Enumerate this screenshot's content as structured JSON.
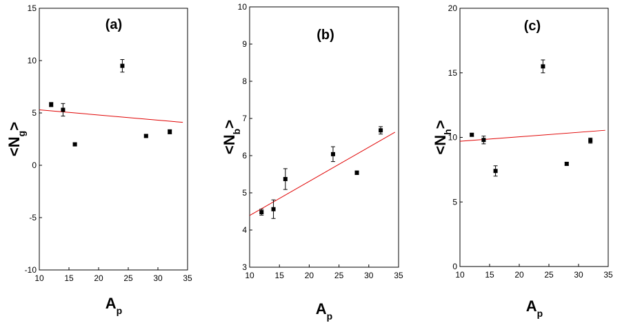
{
  "chart_data": [
    {
      "type": "scatter",
      "title": "(a)",
      "xlabel": "A",
      "xlabel_sub": "p",
      "ylabel": "<N",
      "ylabel_sub": "g",
      "ylabel_end": ">",
      "x": [
        12,
        14,
        16,
        24,
        28,
        32
      ],
      "values": [
        5.8,
        5.3,
        2.0,
        9.5,
        2.8,
        3.2
      ],
      "errors": [
        0.2,
        0.6,
        0.1,
        0.6,
        0.1,
        0.2
      ],
      "color": "#000000",
      "fit": {
        "x": [
          10,
          34.2
        ],
        "y": [
          5.3,
          4.1
        ],
        "color": "#e00000"
      },
      "xlim": [
        10,
        35
      ],
      "ylim": [
        -10,
        15
      ],
      "xticks": [
        10,
        15,
        20,
        25,
        30,
        35
      ],
      "yticks": [
        -10,
        -5,
        0,
        5,
        10,
        15
      ]
    },
    {
      "type": "scatter",
      "title": "(b)",
      "xlabel": "A",
      "xlabel_sub": "p",
      "ylabel": "<N",
      "ylabel_sub": "b",
      "ylabel_end": ">",
      "x": [
        12,
        14,
        16,
        24,
        28,
        32
      ],
      "values": [
        4.48,
        4.56,
        5.37,
        6.04,
        5.54,
        6.68
      ],
      "errors": [
        0.08,
        0.25,
        0.28,
        0.2,
        0.05,
        0.1
      ],
      "color": "#000000",
      "fit": {
        "x": [
          10,
          34.4
        ],
        "y": [
          4.39,
          6.63
        ],
        "color": "#e00000"
      },
      "xlim": [
        10,
        35
      ],
      "ylim": [
        3,
        10
      ],
      "xticks": [
        10,
        15,
        20,
        25,
        30,
        35
      ],
      "yticks": [
        3,
        4,
        5,
        6,
        7,
        8,
        9,
        10
      ]
    },
    {
      "type": "scatter",
      "title": "(c)",
      "xlabel": "A",
      "xlabel_sub": "p",
      "ylabel": "<N",
      "ylabel_sub": "h",
      "ylabel_end": ">",
      "x": [
        12,
        14,
        16,
        24,
        28,
        32
      ],
      "values": [
        10.2,
        9.8,
        7.4,
        15.5,
        7.95,
        9.75
      ],
      "errors": [
        0.1,
        0.3,
        0.4,
        0.5,
        0.1,
        0.2
      ],
      "color": "#000000",
      "fit": {
        "x": [
          10,
          34.5
        ],
        "y": [
          9.7,
          10.55
        ],
        "color": "#e00000"
      },
      "xlim": [
        10,
        35
      ],
      "ylim": [
        0,
        20
      ],
      "xticks": [
        10,
        15,
        20,
        25,
        30,
        35
      ],
      "yticks": [
        0,
        5,
        10,
        15,
        20
      ]
    }
  ]
}
